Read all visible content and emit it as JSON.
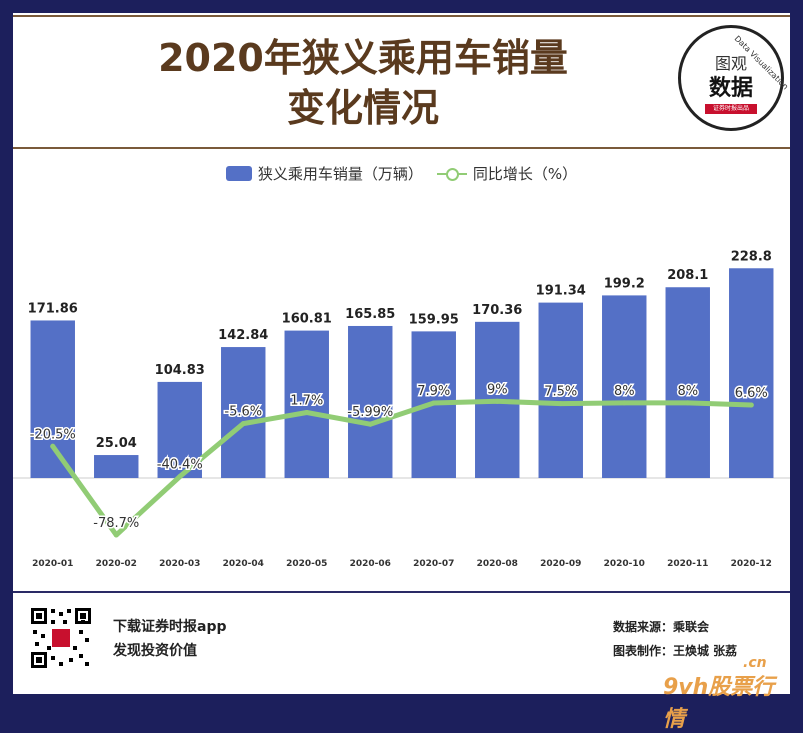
{
  "header": {
    "title_line1": "2020年狭义乘用车销量",
    "title_line2": "变化情况",
    "logo": {
      "top": "图观",
      "main": "数据",
      "ribbon": "证券时报出品",
      "arc": "Data Visualization"
    }
  },
  "footer": {
    "slogan_line1": "下载证券时报app",
    "slogan_line2": "发现投资价值",
    "source": "数据来源：乘联会",
    "author": "图表制作：王焕城 张荔",
    "watermark": "9vh股票行情",
    "watermark_cn": ".cn"
  },
  "colors": {
    "bar": "#5470c6",
    "line": "#91cc75",
    "background": "#1c1f5c"
  },
  "chart_data": {
    "type": "bar",
    "title": "2020年狭义乘用车销量变化情况",
    "categories": [
      "2020-01",
      "2020-02",
      "2020-03",
      "2020-04",
      "2020-05",
      "2020-06",
      "2020-07",
      "2020-08",
      "2020-09",
      "2020-10",
      "2020-11",
      "2020-12"
    ],
    "series": [
      {
        "name": "狭义乘用车销量（万辆）",
        "type": "bar",
        "axis": "left",
        "values": [
          171.86,
          25.04,
          104.83,
          142.84,
          160.81,
          165.85,
          159.95,
          170.36,
          191.34,
          199.2,
          208.1,
          228.8
        ],
        "labels": [
          "171.86",
          "25.04",
          "104.83",
          "142.84",
          "160.81",
          "165.85",
          "159.95",
          "170.36",
          "191.34",
          "199.2",
          "208.1",
          "228.8"
        ]
      },
      {
        "name": "同比增长（%）",
        "type": "line",
        "axis": "right",
        "values": [
          -20.5,
          -78.7,
          -40.4,
          -5.6,
          1.7,
          -5.99,
          7.9,
          9,
          7.5,
          8,
          8,
          6.6
        ],
        "labels": [
          "-20.5%",
          "-78.7%",
          "-40.4%",
          "-5.6%",
          "1.7%",
          "-5.99%",
          "7.9%",
          "9%",
          "7.5%",
          "8%",
          "8%",
          "6.6%"
        ]
      }
    ],
    "left_axis_range": [
      -120,
      240
    ],
    "right_axis_range": [
      -90,
      45
    ],
    "legend_position": "top-center",
    "grid": false
  }
}
